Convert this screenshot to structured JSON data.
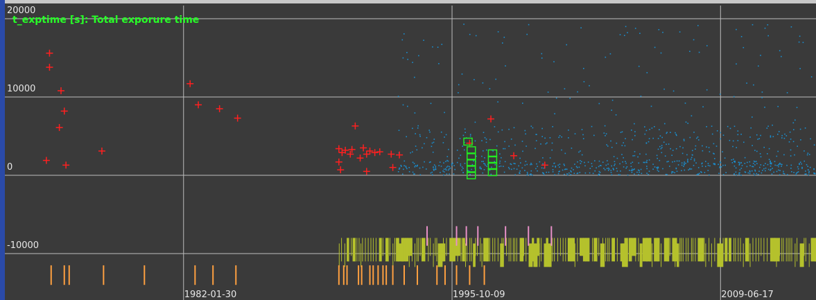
{
  "chart_data": {
    "type": "scatter",
    "title": "t_exptime [s]: Total exporure time",
    "xlabel": "",
    "ylabel": "",
    "ylim": [
      -14000,
      20000
    ],
    "xlim": [
      "1972-12-20",
      "2014-04-30"
    ],
    "grid": true,
    "y_ticks": [
      {
        "value": 20000,
        "label": "20000"
      },
      {
        "value": 10000,
        "label": "10000"
      },
      {
        "value": 0,
        "label": "0"
      },
      {
        "value": -10000,
        "label": "-10000"
      }
    ],
    "x_ticks": [
      {
        "value": "1982-01-30",
        "label": "1982-01-30"
      },
      {
        "value": "1995-10-09",
        "label": "1995-10-09"
      },
      {
        "value": "2009-06-17",
        "label": "2009-06-17"
      }
    ],
    "colors": {
      "red_cross": "#ff2020",
      "blue_dots": "#1a8fd0",
      "green_boxes": "#22ee22",
      "olive_ticks": "#b5c12c",
      "orange_ticks": "#ffa040",
      "pink_ticks": "#e890c8"
    },
    "series": [
      {
        "marker": "red-cross",
        "points": [
          [
            "1975-04-01",
            15600
          ],
          [
            "1975-04-01",
            13800
          ],
          [
            "1975-11-01",
            10800
          ],
          [
            "1976-01-01",
            8200
          ],
          [
            "1975-10-01",
            6100
          ],
          [
            "1975-02-01",
            1900
          ],
          [
            "1976-02-01",
            1300
          ],
          [
            "1977-12-01",
            3100
          ],
          [
            "1982-06-01",
            11700
          ],
          [
            "1982-11-01",
            9000
          ],
          [
            "1983-12-01",
            8500
          ],
          [
            "1984-11-01",
            7300
          ],
          [
            "1990-11-01",
            6300
          ],
          [
            "1990-01-01",
            3400
          ],
          [
            "1990-05-01",
            3200
          ],
          [
            "1990-09-01",
            3300
          ],
          [
            "1990-03-01",
            2900
          ],
          [
            "1990-08-01",
            2700
          ],
          [
            "1991-04-01",
            3500
          ],
          [
            "1991-08-01",
            3100
          ],
          [
            "1991-06-01",
            2700
          ],
          [
            "1991-02-01",
            2200
          ],
          [
            "1991-11-01",
            2900
          ],
          [
            "1992-02-01",
            3000
          ],
          [
            "1992-09-01",
            2700
          ],
          [
            "1993-02-01",
            2600
          ],
          [
            "1990-01-01",
            1700
          ],
          [
            "1990-02-01",
            700
          ],
          [
            "1991-06-01",
            500
          ],
          [
            "1992-10-01",
            1000
          ],
          [
            "1996-09-01",
            4100
          ],
          [
            "1997-10-01",
            7200
          ],
          [
            "1998-12-01",
            2500
          ],
          [
            "2000-07-01",
            1300
          ]
        ]
      },
      {
        "marker": "green-open-square",
        "points": [
          [
            "1996-08-01",
            4300
          ],
          [
            "1996-10-01",
            3200
          ],
          [
            "1996-10-01",
            2400
          ],
          [
            "1996-10-01",
            1600
          ],
          [
            "1996-10-01",
            800
          ],
          [
            "1996-10-01",
            0
          ],
          [
            "1997-11-01",
            2800
          ],
          [
            "1997-11-01",
            2000
          ],
          [
            "1997-11-01",
            1200
          ],
          [
            "1997-11-01",
            400
          ]
        ]
      }
    ],
    "event_ticks": [
      {
        "marker": "pink-tick",
        "y_range": [
          -6500,
          -9000
        ],
        "x": [
          "1994-07-01",
          "1996-01-01",
          "1996-07-01",
          "1997-02-01",
          "1998-07-01",
          "1999-09-01",
          "2000-11-01"
        ]
      },
      {
        "marker": "orange-tick",
        "y_range": [
          -11500,
          -14000
        ],
        "x": [
          "1975-05-01",
          "1976-01-01",
          "1976-04-01",
          "1978-01-01",
          "1980-02-01",
          "1982-09-01",
          "1983-08-01",
          "1984-10-01",
          "1990-01-01",
          "1990-04-01",
          "1990-06-01",
          "1991-01-01",
          "1991-03-01",
          "1991-08-01",
          "1991-10-01",
          "1992-01-01",
          "1992-04-01",
          "1992-06-01",
          "1992-10-01",
          "1993-05-01",
          "1994-01-01",
          "1995-01-01",
          "1995-06-01",
          "1996-01-01",
          "1996-09-01",
          "1997-06-01"
        ]
      }
    ],
    "olive_band": {
      "marker": "olive-tick",
      "y_range": [
        -8000,
        -11000
      ],
      "x_range": [
        "1990-01-01",
        "2014-04-30"
      ]
    },
    "blue_cloud": {
      "marker": "blue-dot",
      "x_range": [
        "1993-01-01",
        "2014-04-30"
      ],
      "y_range": [
        0,
        20000
      ]
    }
  }
}
